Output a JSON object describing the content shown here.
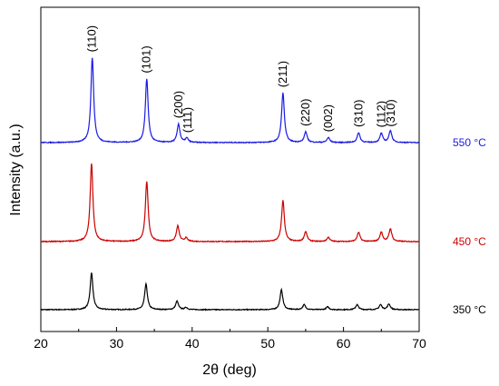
{
  "chart_data": {
    "type": "line",
    "xlabel": "2θ (deg)",
    "ylabel": "Intensity (a.u.)",
    "xlim": [
      20,
      70
    ],
    "xticks": [
      20,
      30,
      40,
      50,
      60,
      70
    ],
    "yticks_shown": false,
    "grid": false,
    "series": [
      {
        "name": "350 °C",
        "color": "#000000",
        "baseline": 0.0,
        "peaks": [
          {
            "x": 26.7,
            "h": 0.52
          },
          {
            "x": 33.9,
            "h": 0.36
          },
          {
            "x": 38.0,
            "h": 0.12
          },
          {
            "x": 39.2,
            "h": 0.03
          },
          {
            "x": 51.8,
            "h": 0.28
          },
          {
            "x": 54.8,
            "h": 0.07
          },
          {
            "x": 57.9,
            "h": 0.04
          },
          {
            "x": 61.8,
            "h": 0.07
          },
          {
            "x": 64.9,
            "h": 0.07
          },
          {
            "x": 66.0,
            "h": 0.08
          }
        ]
      },
      {
        "name": "450 °C",
        "color": "#cc0000",
        "baseline": 1.0,
        "peaks": [
          {
            "x": 26.7,
            "h": 1.1
          },
          {
            "x": 34.0,
            "h": 0.85
          },
          {
            "x": 38.1,
            "h": 0.22
          },
          {
            "x": 39.2,
            "h": 0.05
          },
          {
            "x": 52.0,
            "h": 0.58
          },
          {
            "x": 55.0,
            "h": 0.14
          },
          {
            "x": 58.0,
            "h": 0.06
          },
          {
            "x": 62.0,
            "h": 0.13
          },
          {
            "x": 65.0,
            "h": 0.13
          },
          {
            "x": 66.2,
            "h": 0.18
          }
        ]
      },
      {
        "name": "550 °C",
        "color": "#1a1ae6",
        "baseline": 2.0,
        "peaks": [
          {
            "x": 26.8,
            "h": 1.2
          },
          {
            "x": 34.0,
            "h": 0.9
          },
          {
            "x": 38.2,
            "h": 0.26
          },
          {
            "x": 39.3,
            "h": 0.06
          },
          {
            "x": 52.0,
            "h": 0.7
          },
          {
            "x": 55.0,
            "h": 0.15
          },
          {
            "x": 58.0,
            "h": 0.07
          },
          {
            "x": 62.0,
            "h": 0.14
          },
          {
            "x": 65.0,
            "h": 0.13
          },
          {
            "x": 66.2,
            "h": 0.17
          }
        ]
      }
    ],
    "annotations": [
      {
        "text": "(110)",
        "x": 26.8
      },
      {
        "text": "(101)",
        "x": 34.0
      },
      {
        "text": "(200)",
        "x": 38.2
      },
      {
        "text": "(111)",
        "x": 39.4
      },
      {
        "text": "(211)",
        "x": 52.0
      },
      {
        "text": "(220)",
        "x": 55.0
      },
      {
        "text": "(002)",
        "x": 58.0
      },
      {
        "text": "(310)",
        "x": 62.0
      },
      {
        "text": "(112)",
        "x": 65.0
      },
      {
        "text": "(310)",
        "x": 66.3
      }
    ]
  }
}
